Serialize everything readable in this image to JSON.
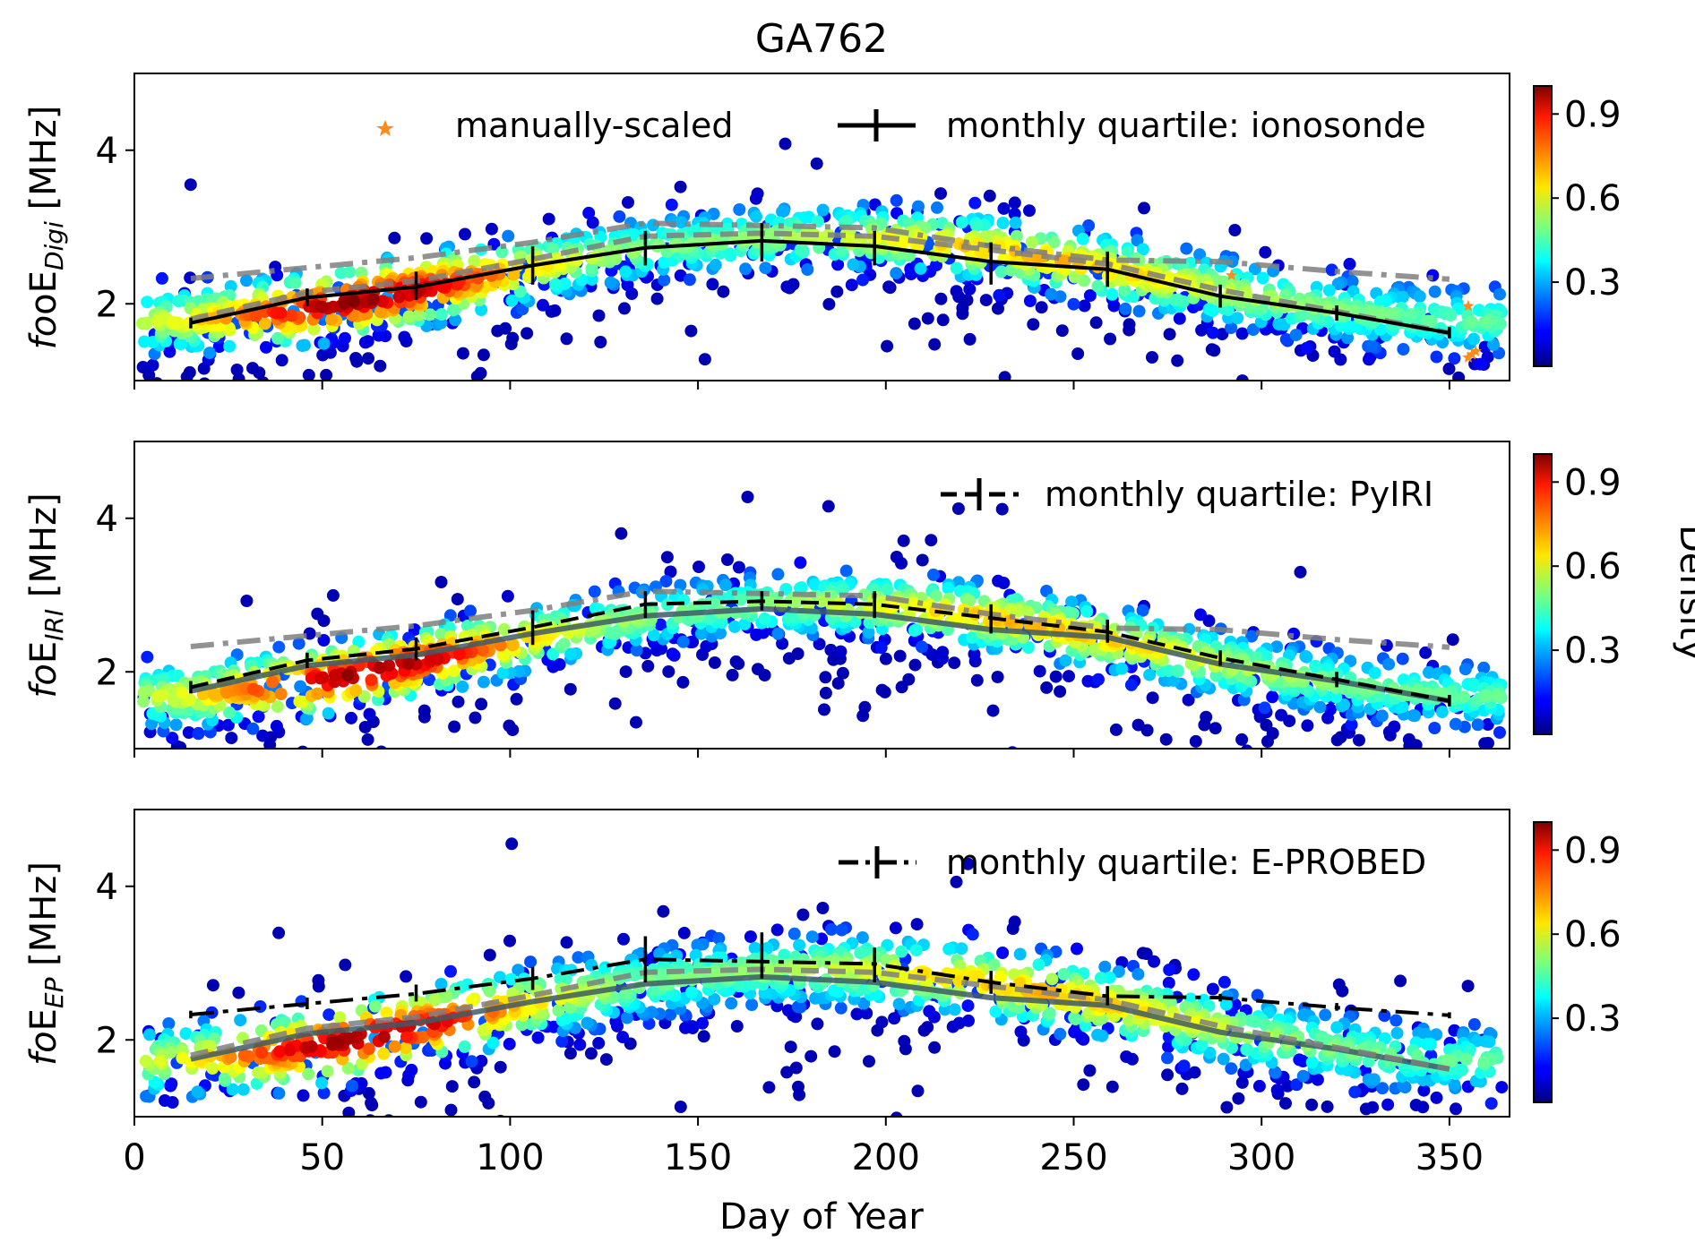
{
  "chart_data": {
    "type": "scatter",
    "title": "GA762",
    "xlabel": "Day of Year",
    "xlim": [
      0,
      366
    ],
    "x_ticks": [
      "0",
      "50",
      "100",
      "150",
      "200",
      "250",
      "300",
      "350"
    ],
    "colorbar": {
      "label": "Density",
      "colormap": "jet",
      "range": [
        0,
        1
      ],
      "ticks": [
        "0.3",
        "0.6",
        "0.9"
      ]
    },
    "panels": [
      {
        "ylabel_base": "foE",
        "ylabel_sub": "Digi",
        "ylabel_unit": "[MHz]",
        "ylim": [
          1,
          5
        ],
        "y_ticks": [
          "2",
          "4"
        ],
        "legend": [
          "manually-scaled",
          "monthly quartile: ionosonde"
        ],
        "curve": {
          "a": 2.32,
          "b": 0.55,
          "d0": 182,
          "spread": 0.42,
          "out_spread": 0.55
        },
        "manual_points": [
          {
            "x": 292,
            "y": 2.37
          },
          {
            "x": 355,
            "y": 1.97
          },
          {
            "x": 355,
            "y": 1.3
          },
          {
            "x": 357,
            "y": 1.38
          },
          {
            "x": 356,
            "y": 1.34
          }
        ],
        "quartile_series": {
          "name": "monthly quartile: ionosonde",
          "style": "solid",
          "x": [
            15,
            46,
            75,
            106,
            136,
            167,
            197,
            228,
            259,
            289,
            320,
            350
          ],
          "median": [
            1.75,
            2.08,
            2.22,
            2.5,
            2.73,
            2.82,
            2.75,
            2.55,
            2.45,
            2.1,
            1.88,
            1.62
          ],
          "q1": [
            1.68,
            1.97,
            2.05,
            2.25,
            2.5,
            2.55,
            2.5,
            2.25,
            2.22,
            1.95,
            1.78,
            1.55
          ],
          "q3": [
            1.82,
            2.2,
            2.42,
            2.75,
            2.95,
            3.05,
            2.95,
            2.8,
            2.68,
            2.25,
            1.98,
            1.7
          ]
        },
        "overlay_series": [
          {
            "style": "dashdot",
            "color": "#7f7f7f",
            "x": [
              15,
              46,
              75,
              106,
              136,
              167,
              197,
              228,
              259,
              289,
              320,
              350
            ],
            "y": [
              2.33,
              2.47,
              2.6,
              2.8,
              3.05,
              3.02,
              2.99,
              2.75,
              2.57,
              2.55,
              2.42,
              2.32
            ]
          },
          {
            "style": "dashed",
            "color": "#7f7f7f",
            "x": [
              15,
              46,
              75,
              106,
              136,
              167,
              197,
              228,
              259,
              289,
              320,
              350
            ],
            "y": [
              1.8,
              2.15,
              2.3,
              2.58,
              2.88,
              2.92,
              2.88,
              2.7,
              2.52,
              2.18,
              1.9,
              1.62
            ]
          }
        ]
      },
      {
        "ylabel_base": "foE",
        "ylabel_sub": "IRI",
        "ylabel_unit": "[MHz]",
        "ylim": [
          1,
          5
        ],
        "y_ticks": [
          "2",
          "4"
        ],
        "legend": [
          "monthly quartile: PyIRI"
        ],
        "curve": {
          "a": 2.28,
          "b": 0.6,
          "d0": 182,
          "spread": 0.4,
          "out_spread": 0.6
        },
        "quartile_series": {
          "name": "monthly quartile: PyIRI",
          "style": "dashed",
          "x": [
            15,
            46,
            75,
            106,
            136,
            167,
            197,
            228,
            259,
            289,
            320,
            350
          ],
          "median": [
            1.8,
            2.15,
            2.3,
            2.58,
            2.88,
            2.92,
            2.88,
            2.7,
            2.52,
            2.18,
            1.9,
            1.62
          ],
          "q1": [
            1.72,
            2.05,
            2.15,
            2.35,
            2.7,
            2.8,
            2.7,
            2.5,
            2.38,
            2.08,
            1.8,
            1.55
          ],
          "q3": [
            1.88,
            2.25,
            2.45,
            2.8,
            3.05,
            3.05,
            3.05,
            2.88,
            2.68,
            2.28,
            2.0,
            1.7
          ]
        },
        "overlay_series": [
          {
            "style": "dashdot",
            "color": "#7f7f7f",
            "x": [
              15,
              46,
              75,
              106,
              136,
              167,
              197,
              228,
              259,
              289,
              320,
              350
            ],
            "y": [
              2.33,
              2.47,
              2.6,
              2.8,
              3.05,
              3.02,
              2.99,
              2.75,
              2.57,
              2.55,
              2.42,
              2.32
            ]
          },
          {
            "style": "solid",
            "color": "#3d5a66",
            "x": [
              15,
              46,
              75,
              106,
              136,
              167,
              197,
              228,
              259,
              289,
              320,
              350
            ],
            "y": [
              1.75,
              2.08,
              2.22,
              2.5,
              2.73,
              2.82,
              2.75,
              2.55,
              2.45,
              2.1,
              1.88,
              1.62
            ]
          }
        ]
      },
      {
        "ylabel_base": "foE",
        "ylabel_sub": "EP",
        "ylabel_unit": "[MHz]",
        "ylim": [
          1,
          5
        ],
        "y_ticks": [
          "2",
          "4"
        ],
        "legend": [
          "monthly quartile: E-PROBED"
        ],
        "curve": {
          "a": 2.32,
          "b": 0.6,
          "d0": 182,
          "spread": 0.45,
          "out_spread": 0.7
        },
        "quartile_series": {
          "name": "monthly quartile: E-PROBED",
          "style": "dashdot",
          "x": [
            15,
            46,
            75,
            106,
            136,
            167,
            197,
            228,
            259,
            289,
            320,
            350
          ],
          "median": [
            2.33,
            2.47,
            2.6,
            2.8,
            3.05,
            3.02,
            2.99,
            2.75,
            2.57,
            2.55,
            2.42,
            2.32
          ],
          "q1": [
            2.28,
            2.4,
            2.5,
            2.65,
            2.75,
            2.8,
            2.75,
            2.6,
            2.45,
            2.5,
            2.38,
            2.28
          ],
          "q3": [
            2.38,
            2.55,
            2.72,
            2.95,
            3.35,
            3.4,
            3.2,
            2.9,
            2.7,
            2.6,
            2.48,
            2.36
          ]
        },
        "overlay_series": [
          {
            "style": "solid",
            "color": "#3d5a66",
            "x": [
              15,
              46,
              75,
              106,
              136,
              167,
              197,
              228,
              259,
              289,
              320,
              350
            ],
            "y": [
              1.75,
              2.08,
              2.22,
              2.5,
              2.73,
              2.82,
              2.75,
              2.55,
              2.45,
              2.1,
              1.88,
              1.62
            ]
          },
          {
            "style": "dashed",
            "color": "#7f7f7f",
            "x": [
              15,
              46,
              75,
              106,
              136,
              167,
              197,
              228,
              259,
              289,
              320,
              350
            ],
            "y": [
              1.8,
              2.15,
              2.3,
              2.58,
              2.88,
              2.92,
              2.88,
              2.7,
              2.52,
              2.18,
              1.9,
              1.62
            ]
          }
        ]
      }
    ]
  }
}
